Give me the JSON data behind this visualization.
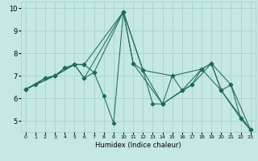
{
  "xlabel": "Humidex (Indice chaleur)",
  "bg_color": "#c5e8e4",
  "grid_color": "#9dcfca",
  "line_color": "#1e6b5a",
  "xlim": [
    -0.5,
    23.5
  ],
  "ylim": [
    4.5,
    10.3
  ],
  "yticks": [
    5,
    6,
    7,
    8,
    9,
    10
  ],
  "xticks": [
    0,
    1,
    2,
    3,
    4,
    5,
    6,
    7,
    8,
    9,
    10,
    11,
    12,
    13,
    14,
    15,
    16,
    17,
    18,
    19,
    20,
    21,
    22,
    23
  ],
  "lines": [
    {
      "x": [
        0,
        1,
        2,
        3,
        4,
        5,
        6,
        7,
        8,
        9,
        10,
        11,
        12,
        13,
        14,
        15,
        16,
        17,
        18,
        19,
        20,
        21,
        22,
        23
      ],
      "y": [
        6.4,
        6.6,
        6.9,
        7.0,
        7.35,
        7.5,
        6.9,
        7.15,
        6.1,
        4.9,
        9.85,
        7.55,
        7.25,
        5.75,
        5.75,
        7.0,
        6.35,
        6.6,
        7.3,
        7.55,
        6.35,
        6.6,
        5.1,
        4.6
      ]
    },
    {
      "x": [
        0,
        3,
        5,
        6,
        10,
        12,
        14,
        17,
        19,
        21,
        23
      ],
      "y": [
        6.4,
        7.0,
        7.5,
        7.5,
        9.85,
        7.25,
        5.75,
        6.6,
        7.55,
        6.6,
        4.6
      ]
    },
    {
      "x": [
        0,
        3,
        5,
        6,
        7,
        10,
        12,
        15,
        18,
        20,
        23
      ],
      "y": [
        6.4,
        7.0,
        7.5,
        7.5,
        7.15,
        9.85,
        7.25,
        7.0,
        7.3,
        6.35,
        4.6
      ]
    },
    {
      "x": [
        0,
        2,
        3,
        4,
        5,
        6,
        10,
        11,
        14,
        16,
        18,
        19,
        20,
        22,
        23
      ],
      "y": [
        6.4,
        6.9,
        7.0,
        7.35,
        7.5,
        6.9,
        9.85,
        7.55,
        5.75,
        6.35,
        7.3,
        7.55,
        6.35,
        5.1,
        4.6
      ]
    }
  ]
}
